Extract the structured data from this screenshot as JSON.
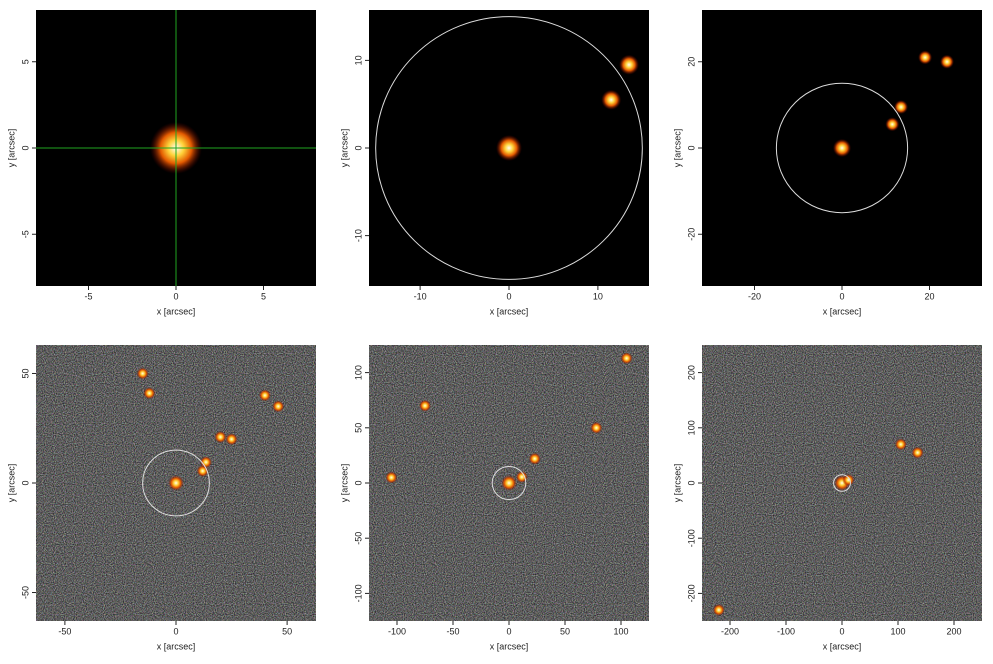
{
  "chart_data": [
    {
      "type": "image",
      "xlabel": "x [arcsec]",
      "ylabel": "y [arcsec]",
      "xlim": [
        -8,
        8
      ],
      "ylim": [
        -8,
        8
      ],
      "xticks": [
        -5,
        0,
        5
      ],
      "yticks": [
        -5,
        0,
        5
      ],
      "crosshair": {
        "x": 0,
        "y": 0,
        "color": "#1fa51f"
      },
      "sources": {
        "x": [
          0
        ],
        "y": [
          0
        ]
      }
    },
    {
      "type": "image",
      "xlabel": "x [arcsec]",
      "ylabel": "y [arcsec]",
      "xlim": [
        -15.75,
        15.75
      ],
      "ylim": [
        -15.75,
        15.75
      ],
      "xticks": [
        -10,
        0,
        10
      ],
      "yticks": [
        -10,
        0,
        10
      ],
      "circle": {
        "x": 0,
        "y": 0,
        "radius": 15
      },
      "sources": {
        "x": [
          0,
          11.5,
          13.5
        ],
        "y": [
          0,
          5.5,
          9.5
        ]
      }
    },
    {
      "type": "image",
      "xlabel": "x [arcsec]",
      "ylabel": "y [arcsec]",
      "xlim": [
        -32,
        32
      ],
      "ylim": [
        -32,
        32
      ],
      "xticks": [
        -20,
        0,
        20
      ],
      "yticks": [
        -20,
        0,
        20
      ],
      "circle": {
        "x": 0,
        "y": 0,
        "radius": 15
      },
      "sources": {
        "x": [
          0,
          11.5,
          13.5,
          19,
          24
        ],
        "y": [
          0,
          5.5,
          9.5,
          21,
          20
        ]
      }
    },
    {
      "type": "image",
      "xlabel": "x [arcsec]",
      "ylabel": "y [arcsec]",
      "xlim": [
        -63,
        63
      ],
      "ylim": [
        -63,
        63
      ],
      "xticks": [
        -50,
        0,
        50
      ],
      "yticks": [
        -50,
        0,
        50
      ],
      "circle": {
        "x": 0,
        "y": 0,
        "radius": 15
      },
      "sources": {
        "x": [
          0,
          12,
          13.5,
          20,
          25,
          -12,
          -15,
          40,
          46
        ],
        "y": [
          0,
          5.5,
          9.5,
          21,
          20,
          41,
          50,
          40,
          35
        ]
      }
    },
    {
      "type": "image",
      "xlabel": "x [arcsec]",
      "ylabel": "y [arcsec]",
      "xlim": [
        -125,
        125
      ],
      "ylim": [
        -125,
        125
      ],
      "xticks": [
        -100,
        -50,
        0,
        50,
        100
      ],
      "yticks": [
        -100,
        -50,
        0,
        50,
        100
      ],
      "circle": {
        "x": 0,
        "y": 0,
        "radius": 15
      },
      "sources": {
        "x": [
          0,
          11.5,
          23,
          -75,
          78,
          105,
          -105
        ],
        "y": [
          0,
          5.5,
          22,
          70,
          50,
          113,
          5
        ]
      }
    },
    {
      "type": "image",
      "xlabel": "x [arcsec]",
      "ylabel": "y [arcsec]",
      "xlim": [
        -250,
        250
      ],
      "ylim": [
        -250,
        250
      ],
      "xticks": [
        -200,
        -100,
        0,
        100,
        200
      ],
      "yticks": [
        -200,
        -100,
        0,
        100,
        200
      ],
      "circle": {
        "x": 0,
        "y": 0,
        "radius": 15
      },
      "sources": {
        "x": [
          0,
          11.5,
          -220,
          105,
          135
        ],
        "y": [
          0,
          5.5,
          -230,
          70,
          55
        ]
      }
    }
  ]
}
